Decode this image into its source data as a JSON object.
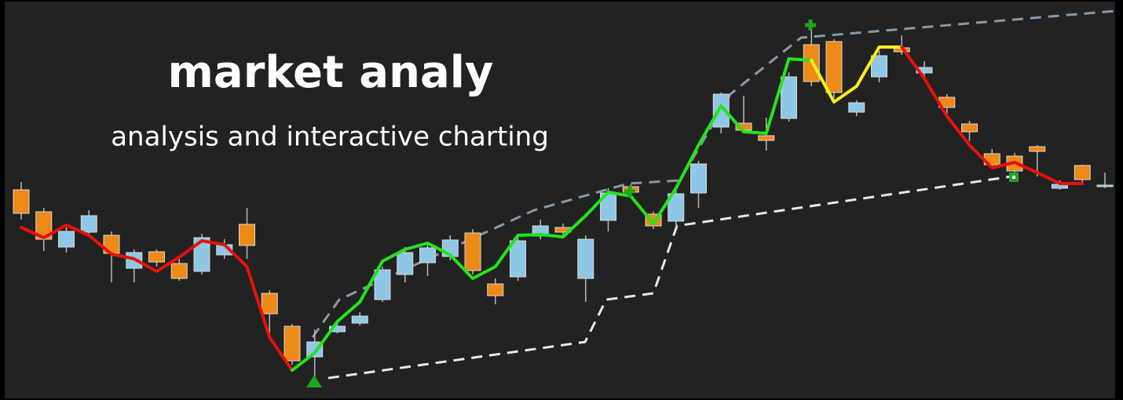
{
  "chart_data": {
    "type": "candlestick",
    "title": "market analy",
    "subtitle": "analysis and interactive charting",
    "up_color": "#8ec8e6",
    "down_color": "#ee8a17",
    "open": [
      268,
      240,
      195,
      214,
      210,
      168,
      189,
      174,
      164,
      185,
      224,
      136,
      94,
      55,
      87,
      98,
      128,
      160,
      175,
      183,
      213,
      148,
      157,
      209,
      220,
      155,
      229,
      272,
      237,
      228,
      264,
      348,
      353,
      337,
      359,
      453,
      457,
      367,
      412,
      449,
      417,
      386,
      352,
      314,
      311,
      323,
      270,
      299,
      272
    ],
    "high": [
      278,
      245,
      220,
      242,
      215,
      192,
      192,
      180,
      212,
      205,
      245,
      140,
      97,
      90,
      100,
      112,
      170,
      195,
      200,
      210,
      218,
      155,
      210,
      230,
      225,
      210,
      270,
      275,
      240,
      268,
      305,
      392,
      388,
      360,
      418,
      482,
      460,
      382,
      445,
      465,
      432,
      390,
      356,
      320,
      315,
      325,
      280,
      300,
      290
    ],
    "low": [
      230,
      190,
      188,
      210,
      150,
      150,
      170,
      152,
      160,
      180,
      180,
      85,
      45,
      30,
      85,
      95,
      125,
      150,
      158,
      178,
      160,
      122,
      152,
      205,
      210,
      125,
      215,
      260,
      218,
      220,
      245,
      340,
      340,
      318,
      355,
      400,
      385,
      362,
      405,
      440,
      410,
      365,
      330,
      295,
      290,
      285,
      268,
      275,
      270
    ],
    "close": [
      238,
      205,
      215,
      235,
      187,
      188,
      176,
      155,
      207,
      198,
      197,
      110,
      50,
      74,
      94,
      107,
      166,
      188,
      194,
      204,
      165,
      133,
      203,
      222,
      214,
      205,
      264,
      265,
      222,
      263,
      301,
      390,
      344,
      331,
      412,
      406,
      392,
      379,
      439,
      444,
      424,
      373,
      342,
      300,
      292,
      317,
      275,
      281,
      274
    ],
    "lines": [
      {
        "color": "#e8100c",
        "values": [
          220,
          207,
          223,
          210,
          186,
          180,
          164,
          182,
          203,
          198,
          170,
          80,
          38,
          null,
          null,
          null,
          null,
          null,
          null,
          null,
          null,
          null,
          null,
          null,
          null,
          null,
          null,
          null,
          null,
          null,
          null,
          null,
          null,
          null,
          null,
          null,
          null,
          null,
          null,
          null,
          null,
          null,
          null,
          null,
          null,
          null,
          null,
          null,
          null
        ]
      },
      {
        "color": "#22e41c",
        "values": [
          null,
          null,
          null,
          null,
          null,
          null,
          null,
          null,
          null,
          null,
          null,
          null,
          38,
          60,
          100,
          125,
          177,
          192,
          200,
          185,
          155,
          170,
          210,
          211,
          208,
          235,
          265,
          260,
          225,
          270,
          325,
          375,
          342,
          340,
          435,
          433,
          null,
          null,
          null,
          null,
          null,
          null,
          null,
          null,
          null,
          null,
          null,
          null,
          null
        ]
      },
      {
        "color": "#f5ef1a",
        "values": [
          null,
          null,
          null,
          null,
          null,
          null,
          null,
          null,
          null,
          null,
          null,
          null,
          null,
          null,
          null,
          null,
          null,
          null,
          null,
          null,
          null,
          null,
          null,
          null,
          null,
          null,
          null,
          null,
          null,
          null,
          null,
          null,
          null,
          null,
          null,
          433,
          380,
          400,
          450,
          450,
          null,
          null,
          null,
          null,
          null,
          null,
          null,
          null,
          null
        ]
      },
      {
        "color": "#e8100c",
        "values": [
          null,
          null,
          null,
          null,
          null,
          null,
          null,
          null,
          null,
          null,
          null,
          null,
          null,
          null,
          null,
          null,
          null,
          null,
          null,
          null,
          null,
          null,
          null,
          null,
          null,
          null,
          null,
          null,
          null,
          null,
          null,
          null,
          null,
          null,
          null,
          null,
          null,
          null,
          null,
          450,
          410,
          362,
          325,
          296,
          303,
          290,
          276,
          276,
          null
        ]
      }
    ]
  }
}
